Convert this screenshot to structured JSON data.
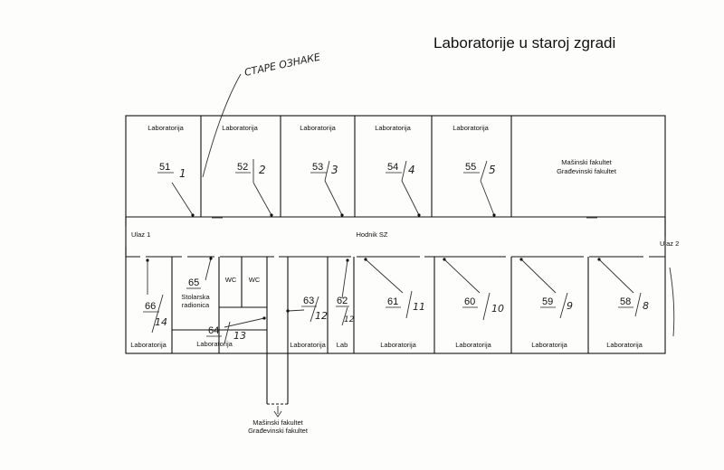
{
  "title": "Laboratorije u staroj zgradi",
  "handwritten_note": "СТАРЕ ОЗНАКЕ",
  "corridor": {
    "label": "Hodnik SZ",
    "entrance_left": "Ulaz 1",
    "entrance_right": "Ulaz 2"
  },
  "top_rooms": [
    {
      "label": "Laboratorija",
      "number": "51",
      "old": "1"
    },
    {
      "label": "Laboratorija",
      "number": "52",
      "old": "2"
    },
    {
      "label": "Laboratorija",
      "number": "53",
      "old": "3"
    },
    {
      "label": "Laboratorija",
      "number": "54",
      "old": "4"
    },
    {
      "label": "Laboratorija",
      "number": "55",
      "old": "5"
    }
  ],
  "top_right_block": [
    "Mašinski fakultet",
    "Građevinski fakultet"
  ],
  "bottom_rooms": {
    "r66": {
      "label": "Laboratorija",
      "number": "66",
      "old": "14"
    },
    "r65": {
      "label_line1": "Stolarska",
      "label_line2": "radionica",
      "number": "65"
    },
    "wc1": "WC",
    "wc2": "WC",
    "r64": {
      "label": "Laboratorija",
      "number": "64",
      "old": "13"
    },
    "r63": {
      "label": "Laboratorija",
      "number": "63",
      "old": "12"
    },
    "r62": {
      "label": "Lab",
      "number": "62",
      "old": "12"
    },
    "r61": {
      "label": "Laboratorija",
      "number": "61",
      "old": "11"
    },
    "r60": {
      "label": "Laboratorija",
      "number": "60",
      "old": "10"
    },
    "r59": {
      "label": "Laboratorija",
      "number": "59",
      "old": "9"
    },
    "r58": {
      "label": "Laboratorija",
      "number": "58",
      "old": "8"
    }
  },
  "exit_passage": [
    "Mašinski fakultet",
    "Građevinski fakultet"
  ]
}
